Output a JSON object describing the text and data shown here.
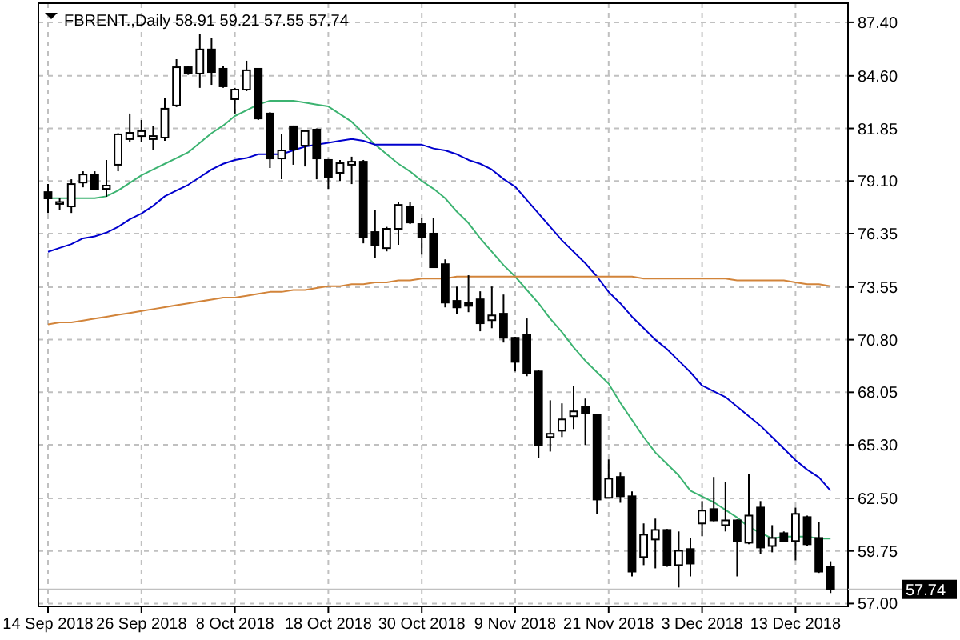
{
  "chart_data": {
    "type": "candlestick",
    "title": "FBRENT.,Daily  58.91 59.21 57.55 57.74",
    "categories": [
      "14 Sep 2018",
      null,
      null,
      null,
      null,
      null,
      null,
      null,
      "26 Sep 2018",
      null,
      null,
      null,
      null,
      null,
      null,
      null,
      "8 Oct 2018",
      null,
      null,
      null,
      null,
      null,
      null,
      null,
      "18 Oct 2018",
      null,
      null,
      null,
      null,
      null,
      null,
      null,
      "30 Oct 2018",
      null,
      null,
      null,
      null,
      null,
      null,
      null,
      "9 Nov 2018",
      null,
      null,
      null,
      null,
      null,
      null,
      null,
      "21 Nov 2018",
      null,
      null,
      null,
      null,
      null,
      null,
      null,
      "3 Dec 2018",
      null,
      null,
      null,
      null,
      null,
      null,
      null,
      "13 Dec 2018",
      null,
      null,
      null
    ],
    "ohlc": [
      [
        78.52,
        78.94,
        77.43,
        78.19
      ],
      [
        77.9,
        78.2,
        77.6,
        78.0
      ],
      [
        77.77,
        79.19,
        77.43,
        78.94
      ],
      [
        79.02,
        79.61,
        78.77,
        79.44
      ],
      [
        79.44,
        79.61,
        78.61,
        78.69
      ],
      [
        78.69,
        80.2,
        78.27,
        78.86
      ],
      [
        79.95,
        81.6,
        79.61,
        81.54
      ],
      [
        81.29,
        82.63,
        81.12,
        81.62
      ],
      [
        81.45,
        82.29,
        81.12,
        81.71
      ],
      [
        81.29,
        81.96,
        80.7,
        81.45
      ],
      [
        81.37,
        83.46,
        81.2,
        82.88
      ],
      [
        83.05,
        85.47,
        82.97,
        85.05
      ],
      [
        85.05,
        85.1,
        84.65,
        84.72
      ],
      [
        84.72,
        86.81,
        83.97,
        85.98
      ],
      [
        85.98,
        86.56,
        84.13,
        84.8
      ],
      [
        84.97,
        85.14,
        83.97,
        84.05
      ],
      [
        83.38,
        83.97,
        82.63,
        83.88
      ],
      [
        83.88,
        85.39,
        83.8,
        84.89
      ],
      [
        84.97,
        85.0,
        82.29,
        82.37
      ],
      [
        82.63,
        82.7,
        79.78,
        80.28
      ],
      [
        80.28,
        81.54,
        79.19,
        80.7
      ],
      [
        81.96,
        82.0,
        79.95,
        80.78
      ],
      [
        80.95,
        81.79,
        79.86,
        81.71
      ],
      [
        81.79,
        81.85,
        79.19,
        80.28
      ],
      [
        80.2,
        80.25,
        78.69,
        79.28
      ],
      [
        79.53,
        80.2,
        79.11,
        80.03
      ],
      [
        79.95,
        80.37,
        78.94,
        80.11
      ],
      [
        80.11,
        80.2,
        75.84,
        76.18
      ],
      [
        76.43,
        77.6,
        75.09,
        75.76
      ],
      [
        75.59,
        76.7,
        75.42,
        76.6
      ],
      [
        76.6,
        78.02,
        75.76,
        77.85
      ],
      [
        77.77,
        78.02,
        76.85,
        76.93
      ],
      [
        76.85,
        77.18,
        75.25,
        76.18
      ],
      [
        76.35,
        77.18,
        74.55,
        74.59
      ],
      [
        74.75,
        75.0,
        72.49,
        72.74
      ],
      [
        72.83,
        73.58,
        72.16,
        72.49
      ],
      [
        72.74,
        74.17,
        72.24,
        72.57
      ],
      [
        72.91,
        73.33,
        71.24,
        71.66
      ],
      [
        71.82,
        73.58,
        71.4,
        72.07
      ],
      [
        72.16,
        73.16,
        70.65,
        70.9
      ],
      [
        70.9,
        70.95,
        69.14,
        69.64
      ],
      [
        71.07,
        71.91,
        68.89,
        69.06
      ],
      [
        69.14,
        69.2,
        64.62,
        65.29
      ],
      [
        65.71,
        67.63,
        64.95,
        65.88
      ],
      [
        66.04,
        67.47,
        65.71,
        66.63
      ],
      [
        66.8,
        68.39,
        66.13,
        67.05
      ],
      [
        67.3,
        67.72,
        65.29,
        66.96
      ],
      [
        66.88,
        66.9,
        61.69,
        62.44
      ],
      [
        62.53,
        64.54,
        62.5,
        63.53
      ],
      [
        63.62,
        63.87,
        62.27,
        62.61
      ],
      [
        62.61,
        62.86,
        58.42,
        58.67
      ],
      [
        59.43,
        61.19,
        59.01,
        60.6
      ],
      [
        60.35,
        61.44,
        58.84,
        60.85
      ],
      [
        60.85,
        60.9,
        58.92,
        59.01
      ],
      [
        59.01,
        60.77,
        57.84,
        59.76
      ],
      [
        59.85,
        60.43,
        58.42,
        59.09
      ],
      [
        61.19,
        62.36,
        60.52,
        61.86
      ],
      [
        61.94,
        63.62,
        61.3,
        61.35
      ],
      [
        61.1,
        63.36,
        60.77,
        61.35
      ],
      [
        61.35,
        61.4,
        58.42,
        60.27
      ],
      [
        60.18,
        63.78,
        60.1,
        61.6
      ],
      [
        62.02,
        62.36,
        59.59,
        59.93
      ],
      [
        60.01,
        61.1,
        59.68,
        60.43
      ],
      [
        60.68,
        60.77,
        60.2,
        60.27
      ],
      [
        60.27,
        62.02,
        59.26,
        61.69
      ],
      [
        61.52,
        61.6,
        60.0,
        60.1
      ],
      [
        60.43,
        61.27,
        58.6,
        58.67
      ],
      [
        58.91,
        59.21,
        57.55,
        57.74
      ]
    ],
    "series": [
      {
        "type": "line",
        "color": "#3cb371",
        "values": [
          78.2,
          78.2,
          78.2,
          78.2,
          78.2,
          78.3,
          78.6,
          79.0,
          79.4,
          79.7,
          80.0,
          80.3,
          80.6,
          81.1,
          81.6,
          82.0,
          82.5,
          82.8,
          83.1,
          83.3,
          83.3,
          83.3,
          83.2,
          83.1,
          83.0,
          82.6,
          82.2,
          81.6,
          81.0,
          80.5,
          80.0,
          79.6,
          79.1,
          78.7,
          78.2,
          77.5,
          76.9,
          76.1,
          75.4,
          74.7,
          74.1,
          73.4,
          72.7,
          71.9,
          71.2,
          70.4,
          69.7,
          69.1,
          68.5,
          67.5,
          66.6,
          65.7,
          64.9,
          64.3,
          63.7,
          62.9,
          62.6,
          62.3,
          61.9,
          61.5,
          61.0,
          60.7,
          60.4,
          60.5,
          60.5,
          60.5,
          60.4,
          60.4
        ]
      },
      {
        "type": "line",
        "color": "#0000cd",
        "values": [
          75.4,
          75.6,
          75.8,
          76.1,
          76.2,
          76.4,
          76.7,
          77.1,
          77.4,
          77.8,
          78.3,
          78.6,
          78.9,
          79.3,
          79.7,
          80.0,
          80.2,
          80.3,
          80.5,
          80.5,
          80.5,
          80.7,
          80.9,
          81.0,
          81.1,
          81.2,
          81.3,
          81.2,
          81.0,
          81.0,
          81.0,
          81.0,
          81.0,
          80.8,
          80.7,
          80.5,
          80.2,
          80.0,
          79.7,
          79.2,
          78.8,
          78.1,
          77.4,
          76.7,
          76.0,
          75.4,
          74.8,
          74.1,
          73.3,
          72.7,
          72.0,
          71.4,
          70.8,
          70.3,
          69.7,
          69.1,
          68.4,
          68.1,
          67.8,
          67.3,
          66.8,
          66.3,
          65.7,
          65.1,
          64.5,
          64.0,
          63.6,
          62.9
        ]
      },
      {
        "type": "line",
        "color": "#d2843a",
        "values": [
          71.6,
          71.7,
          71.7,
          71.8,
          71.9,
          72.0,
          72.1,
          72.2,
          72.3,
          72.4,
          72.5,
          72.6,
          72.7,
          72.8,
          72.9,
          73.0,
          73.0,
          73.1,
          73.2,
          73.3,
          73.3,
          73.4,
          73.4,
          73.5,
          73.6,
          73.6,
          73.7,
          73.7,
          73.8,
          73.8,
          73.9,
          73.9,
          74.0,
          74.0,
          74.0,
          74.1,
          74.1,
          74.1,
          74.1,
          74.1,
          74.1,
          74.1,
          74.1,
          74.1,
          74.1,
          74.1,
          74.1,
          74.1,
          74.1,
          74.1,
          74.1,
          74.0,
          74.0,
          74.0,
          74.0,
          74.0,
          74.0,
          74.0,
          74.0,
          73.9,
          73.9,
          73.9,
          73.9,
          73.9,
          73.8,
          73.7,
          73.7,
          73.6
        ]
      }
    ],
    "ylim": [
      56.85,
      88.4
    ],
    "yticks": [
      {
        "value": 57.0,
        "label": "57.00"
      },
      {
        "value": 59.75,
        "label": "59.75"
      },
      {
        "value": 62.5,
        "label": "62.50"
      },
      {
        "value": 65.3,
        "label": "65.30"
      },
      {
        "value": 68.05,
        "label": "68.05"
      },
      {
        "value": 70.8,
        "label": "70.80"
      },
      {
        "value": 73.55,
        "label": "73.55"
      },
      {
        "value": 76.35,
        "label": "76.35"
      },
      {
        "value": 79.1,
        "label": "79.10"
      },
      {
        "value": 81.85,
        "label": "81.85"
      },
      {
        "value": 84.6,
        "label": "84.60"
      },
      {
        "value": 87.4,
        "label": "87.40"
      }
    ],
    "ref_lines": [
      {
        "axis": "y",
        "value": 57.74,
        "label": "57.74",
        "color": "#c0c0c0"
      }
    ],
    "grid": true
  }
}
